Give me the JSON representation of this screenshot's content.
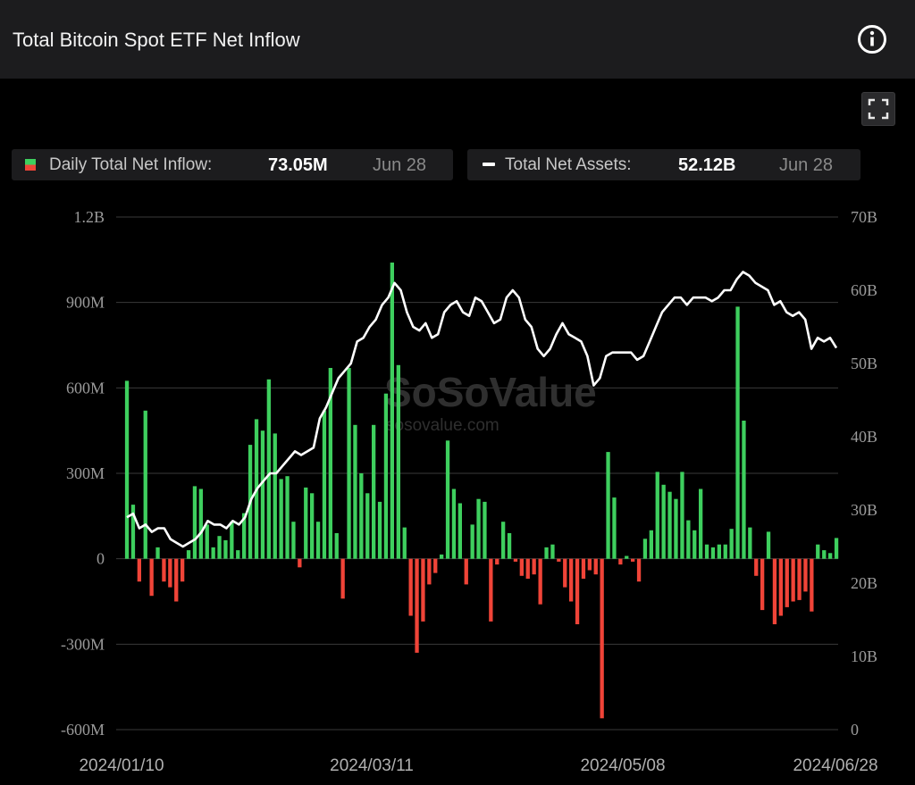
{
  "header": {
    "title": "Total Bitcoin Spot ETF Net Inflow",
    "info_icon": "info-icon",
    "expand_icon": "expand-icon"
  },
  "legend": {
    "inflow": {
      "label": "Daily Total Net Inflow:",
      "value": "73.05M",
      "date": "Jun 28"
    },
    "assets": {
      "label": "Total Net Assets:",
      "value": "52.12B",
      "date": "Jun 28"
    }
  },
  "watermark": {
    "brand": "SoSoValue",
    "site": "sosovalue.com"
  },
  "colors": {
    "positive": "#3ecf5e",
    "negative": "#f04438",
    "line": "#ffffff",
    "grid": "#3a3a3a",
    "axis_text": "#9a9a9a"
  },
  "chart_data": {
    "type": "bar+line",
    "x_tick_labels": [
      "2024/01/10",
      "2024/03/11",
      "2024/05/08",
      "2024/06/28"
    ],
    "y_left": {
      "ticks": [
        "1.2B",
        "900M",
        "600M",
        "300M",
        "0",
        "-300M",
        "-600M"
      ],
      "range_millions": [
        -600,
        1200
      ]
    },
    "y_right": {
      "ticks": [
        "70B",
        "60B",
        "50B",
        "40B",
        "30B",
        "20B",
        "10B",
        "0"
      ],
      "range_billions": [
        0,
        70
      ]
    },
    "series": [
      {
        "type": "bar",
        "unit": "M",
        "values": [
          625,
          190,
          -80,
          520,
          -130,
          40,
          -80,
          -100,
          -150,
          -80,
          30,
          255,
          245,
          120,
          40,
          80,
          65,
          130,
          30,
          160,
          400,
          490,
          450,
          630,
          440,
          280,
          290,
          130,
          -30,
          250,
          230,
          130,
          520,
          670,
          90,
          -140,
          670,
          470,
          300,
          230,
          470,
          200,
          580,
          1040,
          680,
          110,
          -200,
          -330,
          -220,
          -90,
          -50,
          15,
          415,
          245,
          195,
          -90,
          120,
          210,
          200,
          -220,
          -20,
          130,
          90,
          -10,
          -60,
          -70,
          -55,
          -160,
          40,
          50,
          -10,
          -100,
          -150,
          -230,
          -70,
          -40,
          -55,
          -560,
          375,
          215,
          -20,
          10,
          -10,
          -80,
          70,
          100,
          305,
          260,
          235,
          210,
          305,
          135,
          100,
          245,
          50,
          40,
          50,
          50,
          105,
          885,
          485,
          110,
          -60,
          -180,
          95,
          -230,
          -200,
          -170,
          -150,
          -145,
          -115,
          -185,
          50,
          30,
          20,
          73
        ]
      },
      {
        "type": "line",
        "unit": "B",
        "values": [
          29,
          29.5,
          27.5,
          28,
          27,
          27.5,
          27.5,
          26,
          25.5,
          25,
          25.5,
          26,
          27,
          28.5,
          28,
          28,
          27.5,
          28.5,
          28,
          29,
          31.5,
          33,
          34,
          35,
          35,
          36,
          37,
          38,
          37.5,
          38,
          38.5,
          42.5,
          44,
          46,
          48,
          49,
          50,
          53,
          53.5,
          55,
          56,
          58,
          59,
          61,
          60,
          57,
          55,
          54.5,
          55.5,
          53.5,
          54,
          57,
          58,
          58.5,
          57,
          56.5,
          59,
          58.5,
          57,
          55.5,
          56,
          59,
          60,
          59,
          56,
          55,
          52,
          51,
          52,
          54,
          55.5,
          54,
          53.5,
          53,
          51,
          47,
          48,
          51,
          51.5,
          51.5,
          51.5,
          51.5,
          50.5,
          51,
          53,
          55,
          57,
          58,
          59,
          59,
          58,
          59,
          59,
          59,
          58.5,
          59,
          60,
          60,
          61.5,
          62.5,
          62,
          61,
          60.5,
          60,
          58,
          58.5,
          57,
          56.5,
          57,
          56,
          52,
          53.5,
          53,
          53.5,
          52.12
        ]
      }
    ]
  }
}
